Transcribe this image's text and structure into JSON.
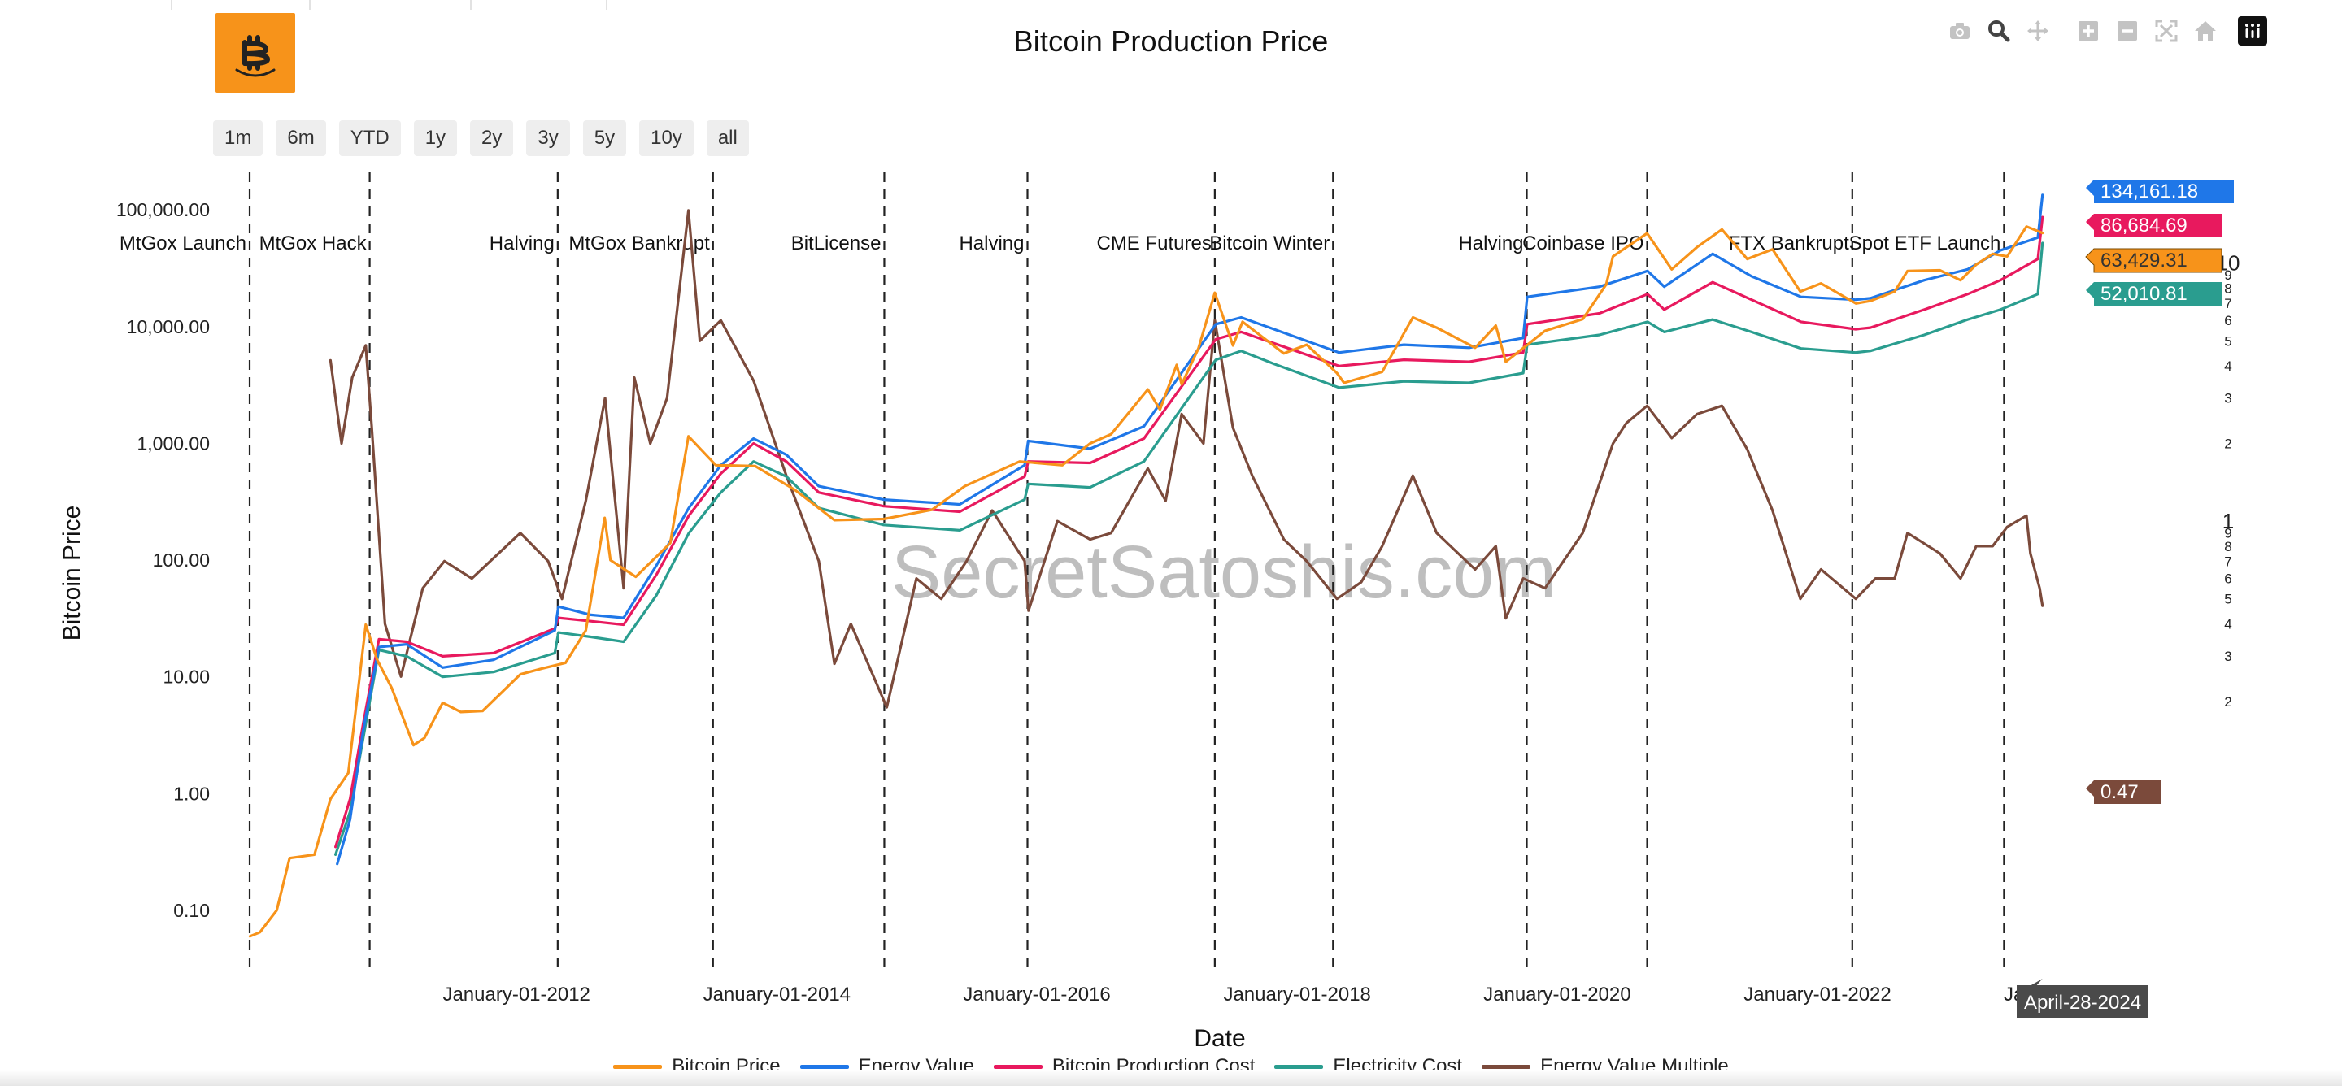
{
  "title": "Bitcoin Production Price",
  "range_buttons": [
    "1m",
    "6m",
    "YTD",
    "1y",
    "2y",
    "3y",
    "5y",
    "10y",
    "all"
  ],
  "modebar": {
    "icons": [
      "camera-icon",
      "zoom-icon",
      "pan-icon",
      "zoom-in-icon",
      "zoom-out-icon",
      "autoscale-icon",
      "reset-home-icon",
      "plotly-logo-icon"
    ]
  },
  "legend": [
    {
      "name": "Bitcoin Price",
      "color": "#f7931a"
    },
    {
      "name": "Energy Value",
      "color": "#1f77e8"
    },
    {
      "name": "Bitcoin Production Cost",
      "color": "#e8195e"
    },
    {
      "name": "Electricity Cost",
      "color": "#2a9d8f"
    },
    {
      "name": "Energy Value Multiple",
      "color": "#7b4a3b"
    }
  ],
  "hover_date": "April-28-2024",
  "watermark": "SecretSatoshis.com",
  "chart_data": {
    "type": "line",
    "title": "Bitcoin Production Price",
    "xlabel": "Date",
    "ylabel": "Bitcoin Price",
    "x_range": [
      "2010-07-01",
      "2024-10-01"
    ],
    "y_scale": "log",
    "ylim": [
      0.03,
      200000
    ],
    "y_ticks": [
      0.1,
      1,
      10,
      100,
      1000,
      10000,
      100000
    ],
    "y_tick_labels": [
      "0.10",
      "1.00",
      "10.00",
      "100.00",
      "1,000.00",
      "10,000.00",
      "100,000.00"
    ],
    "x_tick_labels": [
      "January-01-2012",
      "January-01-2014",
      "January-01-2016",
      "January-01-2018",
      "January-01-2020",
      "January-01-2022",
      "Janua"
    ],
    "x_tick_dates": [
      "2012-01-01",
      "2014-01-01",
      "2016-01-01",
      "2018-01-01",
      "2020-01-01",
      "2022-01-01",
      "2024-01-01"
    ],
    "y2_scale": "log",
    "y2_range": [
      0.018,
      22
    ],
    "y2_major_labels": [
      {
        "value": 1,
        "label": "1"
      },
      {
        "value": 10,
        "label": "10"
      }
    ],
    "y2_minor_labels": [
      {
        "value": 0.2,
        "label": "2"
      },
      {
        "value": 0.3,
        "label": "3"
      },
      {
        "value": 0.4,
        "label": "4"
      },
      {
        "value": 0.5,
        "label": "5"
      },
      {
        "value": 0.6,
        "label": "6"
      },
      {
        "value": 0.7,
        "label": "7"
      },
      {
        "value": 0.8,
        "label": "8"
      },
      {
        "value": 0.9,
        "label": "9"
      },
      {
        "value": 2,
        "label": "2"
      },
      {
        "value": 3,
        "label": "3"
      },
      {
        "value": 4,
        "label": "4"
      },
      {
        "value": 5,
        "label": "5"
      },
      {
        "value": 6,
        "label": "6"
      },
      {
        "value": 7,
        "label": "7"
      },
      {
        "value": 8,
        "label": "8"
      },
      {
        "value": 9,
        "label": "9"
      }
    ],
    "events": [
      {
        "date": "2010-07-17",
        "label": "MtGox Launch"
      },
      {
        "date": "2011-06-19",
        "label": "MtGox Hack"
      },
      {
        "date": "2012-11-28",
        "label": "Halving"
      },
      {
        "date": "2014-02-07",
        "label": "MtGox Bankrupt"
      },
      {
        "date": "2015-06-03",
        "label": "BitLicense"
      },
      {
        "date": "2016-07-09",
        "label": "Halving"
      },
      {
        "date": "2017-12-17",
        "label": "CME Futures"
      },
      {
        "date": "2018-11-14",
        "label": "Bitcoin Winter"
      },
      {
        "date": "2020-05-11",
        "label": "Halving"
      },
      {
        "date": "2021-04-14",
        "label": "Coinbase IPO"
      },
      {
        "date": "2022-11-11",
        "label": "FTX Bankrupt"
      },
      {
        "date": "2024-01-11",
        "label": "Spot ETF Launch"
      }
    ],
    "series": [
      {
        "name": "Bitcoin Price",
        "color": "#f7931a",
        "axis": "y",
        "x": [
          "2010-07-18",
          "2010-08-15",
          "2010-10-01",
          "2010-11-06",
          "2011-01-15",
          "2011-03-01",
          "2011-04-20",
          "2011-06-08",
          "2011-07-10",
          "2011-08-20",
          "2011-10-20",
          "2011-11-20",
          "2012-01-10",
          "2012-03-01",
          "2012-05-01",
          "2012-08-15",
          "2012-10-15",
          "2012-12-20",
          "2013-02-15",
          "2013-04-09",
          "2013-04-25",
          "2013-07-05",
          "2013-10-10",
          "2013-11-30",
          "2014-02-15",
          "2014-06-05",
          "2014-09-25",
          "2015-01-14",
          "2015-06-01",
          "2015-10-15",
          "2016-01-15",
          "2016-06-17",
          "2016-10-15",
          "2017-01-01",
          "2017-03-01",
          "2017-06-12",
          "2017-07-16",
          "2017-09-01",
          "2017-09-15",
          "2017-11-01",
          "2017-12-17",
          "2018-02-06",
          "2018-03-05",
          "2018-06-29",
          "2018-09-01",
          "2018-11-25",
          "2018-12-15",
          "2019-04-01",
          "2019-06-26",
          "2019-09-01",
          "2019-12-18",
          "2020-02-14",
          "2020-03-13",
          "2020-07-01",
          "2020-10-15",
          "2020-12-20",
          "2021-01-08",
          "2021-04-14",
          "2021-06-22",
          "2021-09-01",
          "2021-11-10",
          "2022-01-20",
          "2022-04-01",
          "2022-06-18",
          "2022-08-15",
          "2022-11-21",
          "2023-01-01",
          "2023-03-10",
          "2023-04-15",
          "2023-07-15",
          "2023-09-11",
          "2023-10-25",
          "2023-12-10",
          "2024-01-20",
          "2024-03-14",
          "2024-04-28"
        ],
        "y": [
          0.06,
          0.065,
          0.1,
          0.28,
          0.3,
          0.9,
          1.5,
          28,
          14,
          8,
          2.6,
          3.0,
          6.0,
          5.0,
          5.1,
          10.5,
          11.8,
          13.2,
          25,
          230,
          100,
          72,
          140,
          1150,
          650,
          640,
          400,
          220,
          225,
          270,
          430,
          700,
          650,
          1000,
          1200,
          2900,
          1950,
          4700,
          3200,
          6500,
          19500,
          6900,
          11000,
          5900,
          7000,
          4000,
          3300,
          4100,
          12000,
          9800,
          6600,
          10200,
          5000,
          9200,
          11600,
          23000,
          40000,
          63000,
          31000,
          48000,
          68000,
          38000,
          46000,
          20000,
          23500,
          15800,
          16600,
          20000,
          30000,
          30400,
          25000,
          34000,
          42000,
          40000,
          72000,
          63429.31
        ]
      },
      {
        "name": "Energy Value",
        "color": "#1f77e8",
        "axis": "y",
        "x": [
          "2011-03-20",
          "2011-04-25",
          "2011-06-01",
          "2011-07-15",
          "2011-10-01",
          "2012-01-10",
          "2012-06-01",
          "2012-11-20",
          "2012-11-30",
          "2013-03-01",
          "2013-06-01",
          "2013-09-01",
          "2013-12-01",
          "2014-03-01",
          "2014-06-01",
          "2014-09-01",
          "2014-12-01",
          "2015-06-01",
          "2016-01-01",
          "2016-07-01",
          "2016-07-11",
          "2017-01-01",
          "2017-06-01",
          "2017-12-20",
          "2018-03-01",
          "2018-06-01",
          "2018-12-01",
          "2019-06-01",
          "2019-12-01",
          "2020-05-01",
          "2020-05-12",
          "2020-12-01",
          "2021-04-15",
          "2021-06-01",
          "2021-10-15",
          "2022-02-01",
          "2022-06-20",
          "2022-11-20",
          "2023-01-01",
          "2023-06-01",
          "2023-10-01",
          "2024-01-01",
          "2024-04-15",
          "2024-04-20",
          "2024-04-28"
        ],
        "y": [
          0.25,
          0.6,
          3.5,
          18,
          19,
          12,
          14,
          25,
          40,
          34,
          32,
          90,
          280,
          650,
          1100,
          800,
          430,
          330,
          300,
          650,
          1050,
          900,
          1400,
          10500,
          12000,
          9500,
          6000,
          7000,
          6600,
          8000,
          18000,
          22000,
          30000,
          22000,
          42000,
          27000,
          18000,
          17000,
          17500,
          25000,
          31000,
          45000,
          58000,
          80000,
          134161.18
        ]
      },
      {
        "name": "Bitcoin Production Cost",
        "color": "#e8195e",
        "axis": "y",
        "x": [
          "2011-03-15",
          "2011-04-25",
          "2011-06-01",
          "2011-07-15",
          "2011-10-01",
          "2012-01-10",
          "2012-06-01",
          "2012-11-20",
          "2012-11-30",
          "2013-03-01",
          "2013-06-01",
          "2013-09-01",
          "2013-12-01",
          "2014-03-01",
          "2014-06-01",
          "2014-09-01",
          "2014-12-01",
          "2015-06-01",
          "2016-01-01",
          "2016-07-01",
          "2016-07-11",
          "2017-01-01",
          "2017-06-01",
          "2017-12-20",
          "2018-03-01",
          "2018-06-01",
          "2018-12-01",
          "2019-06-01",
          "2019-12-01",
          "2020-05-01",
          "2020-05-12",
          "2020-12-01",
          "2021-04-15",
          "2021-06-01",
          "2021-10-15",
          "2022-02-01",
          "2022-06-20",
          "2022-11-20",
          "2023-01-01",
          "2023-06-01",
          "2023-10-01",
          "2024-01-01",
          "2024-04-15",
          "2024-04-28"
        ],
        "y": [
          0.35,
          0.9,
          4,
          21,
          20,
          15,
          16,
          26,
          32,
          30,
          28,
          75,
          240,
          550,
          1000,
          700,
          380,
          290,
          260,
          520,
          700,
          680,
          1100,
          7800,
          9000,
          7200,
          4600,
          5200,
          5000,
          6000,
          10500,
          13000,
          19000,
          14000,
          24000,
          17000,
          11000,
          9500,
          9800,
          14000,
          19000,
          25000,
          38000,
          86684.69
        ]
      },
      {
        "name": "Electricity Cost",
        "color": "#2a9d8f",
        "axis": "y",
        "x": [
          "2011-03-15",
          "2011-04-25",
          "2011-06-01",
          "2011-07-15",
          "2011-10-01",
          "2012-01-10",
          "2012-06-01",
          "2012-11-20",
          "2012-11-30",
          "2013-03-01",
          "2013-06-01",
          "2013-09-01",
          "2013-12-01",
          "2014-03-01",
          "2014-06-01",
          "2014-09-01",
          "2014-12-01",
          "2015-06-01",
          "2016-01-01",
          "2016-07-01",
          "2016-07-11",
          "2017-01-01",
          "2017-06-01",
          "2017-12-20",
          "2018-03-01",
          "2018-06-01",
          "2018-12-01",
          "2019-06-01",
          "2019-12-01",
          "2020-05-01",
          "2020-05-12",
          "2020-12-01",
          "2021-04-15",
          "2021-06-01",
          "2021-10-15",
          "2022-02-01",
          "2022-06-20",
          "2022-11-20",
          "2023-01-01",
          "2023-06-01",
          "2023-10-01",
          "2024-01-01",
          "2024-04-15",
          "2024-04-28"
        ],
        "y": [
          0.3,
          0.7,
          3,
          17,
          15,
          10,
          11,
          16,
          24,
          22,
          20,
          50,
          170,
          380,
          700,
          520,
          280,
          200,
          180,
          330,
          450,
          420,
          700,
          5200,
          6200,
          4800,
          3000,
          3400,
          3300,
          4000,
          7000,
          8500,
          11000,
          9000,
          11500,
          9000,
          6500,
          6000,
          6200,
          8500,
          11500,
          14000,
          19000,
          52010.81
        ]
      },
      {
        "name": "Energy Value Multiple",
        "color": "#7b4a3b",
        "axis": "y2",
        "x": [
          "2011-03-01",
          "2011-04-01",
          "2011-05-01",
          "2011-06-08",
          "2011-06-25",
          "2011-08-01",
          "2011-09-15",
          "2011-11-15",
          "2012-01-15",
          "2012-04-01",
          "2012-08-15",
          "2012-11-01",
          "2012-12-10",
          "2013-02-15",
          "2013-04-10",
          "2013-06-01",
          "2013-07-01",
          "2013-08-15",
          "2013-10-01",
          "2013-11-30",
          "2014-01-01",
          "2014-03-01",
          "2014-06-01",
          "2014-09-01",
          "2014-12-01",
          "2015-01-14",
          "2015-03-01",
          "2015-06-10",
          "2015-09-01",
          "2015-11-10",
          "2016-01-20",
          "2016-04-01",
          "2016-07-01",
          "2016-07-12",
          "2016-10-01",
          "2017-01-01",
          "2017-03-01",
          "2017-06-12",
          "2017-08-01",
          "2017-09-15",
          "2017-11-15",
          "2017-12-17",
          "2018-02-06",
          "2018-04-01",
          "2018-06-29",
          "2018-09-01",
          "2018-11-25",
          "2019-02-01",
          "2019-04-01",
          "2019-06-26",
          "2019-09-01",
          "2019-12-18",
          "2020-02-14",
          "2020-03-13",
          "2020-05-01",
          "2020-07-01",
          "2020-10-15",
          "2021-01-08",
          "2021-02-15",
          "2021-04-14",
          "2021-06-22",
          "2021-09-01",
          "2021-11-10",
          "2022-01-20",
          "2022-04-01",
          "2022-06-18",
          "2022-08-15",
          "2022-11-21",
          "2023-01-15",
          "2023-03-10",
          "2023-04-15",
          "2023-07-15",
          "2023-09-11",
          "2023-10-25",
          "2023-12-10",
          "2024-01-20",
          "2024-03-14",
          "2024-03-25",
          "2024-04-20",
          "2024-04-28"
        ],
        "y": [
          4.2,
          2.0,
          3.6,
          4.8,
          2.3,
          0.4,
          0.25,
          0.55,
          0.7,
          0.6,
          0.9,
          0.7,
          0.5,
          1.2,
          3.0,
          0.55,
          3.6,
          2.0,
          3.0,
          16,
          5,
          6,
          3.5,
          1.5,
          0.7,
          0.28,
          0.4,
          0.19,
          0.6,
          0.5,
          0.7,
          1.1,
          0.7,
          0.45,
          1.0,
          0.85,
          0.9,
          1.6,
          1.2,
          2.6,
          2.0,
          6.0,
          2.3,
          1.5,
          0.85,
          0.7,
          0.5,
          0.58,
          0.8,
          1.5,
          0.9,
          0.65,
          0.8,
          0.42,
          0.6,
          0.55,
          0.9,
          2.0,
          2.4,
          2.8,
          2.1,
          2.6,
          2.8,
          1.9,
          1.1,
          0.5,
          0.65,
          0.5,
          0.6,
          0.6,
          0.9,
          0.75,
          0.6,
          0.8,
          0.8,
          0.95,
          1.05,
          0.75,
          0.55,
          0.47
        ]
      }
    ],
    "end_labels": [
      {
        "series": "Energy Value",
        "value": "134,161.18",
        "bg": "#1f77e8"
      },
      {
        "series": "Bitcoin Production Cost",
        "value": "86,684.69",
        "bg": "#e8195e"
      },
      {
        "series": "Bitcoin Price",
        "value": "63,429.31",
        "bg": "#f7931a"
      },
      {
        "series": "Electricity Cost",
        "value": "52,010.81",
        "bg": "#2a9d8f"
      },
      {
        "series": "Energy Value Multiple",
        "value": "0.47",
        "bg": "#7b4a3b"
      }
    ]
  }
}
